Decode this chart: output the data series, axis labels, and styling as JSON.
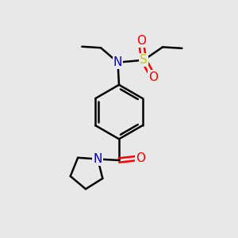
{
  "bg_color": "#e8e8e8",
  "atom_colors": {
    "C": "#000000",
    "N": "#0000cc",
    "O": "#ff0000",
    "S": "#cccc00"
  },
  "bond_lw": 1.8,
  "fig_size": [
    3.0,
    3.0
  ],
  "dpi": 100
}
